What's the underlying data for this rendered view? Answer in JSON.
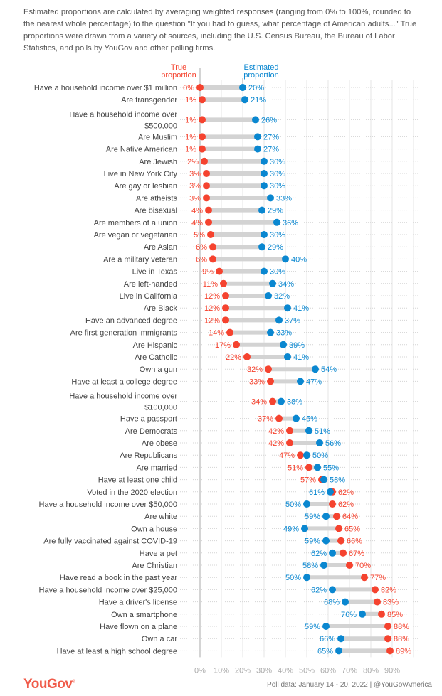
{
  "intro_text": "Estimated proportions are calculated by averaging weighted responses (ranging from 0% to 100%, rounded to the nearest whole percentage) to the question \"If you had to guess, what percentage of American adults...\" True proportions were drawn from a variety of sources, including the U.S. Census Bureau, the Bureau of Labor Statistics, and polls by YouGov and other polling firms.",
  "footer": {
    "logo": "YouGov",
    "source": "Poll data: January 14 - 20, 2022 | @YouGovAmerica"
  },
  "colors": {
    "true": "#f5432f",
    "estimated": "#0a87d0",
    "connector": "#d3d3d3"
  },
  "chart_data": {
    "type": "dumbbell",
    "title": "",
    "xlabel": "",
    "ylabel": "",
    "xlim": [
      0,
      100
    ],
    "xticks": [
      "0%",
      "10%",
      "20%",
      "30%",
      "40%",
      "50%",
      "60%",
      "70%",
      "80%",
      "90%"
    ],
    "grid": true,
    "legend": {
      "true_label_line1": "True",
      "true_label_line2": "proportion",
      "estimated_label_line1": "Estimated",
      "estimated_label_line2": "proportion",
      "placement": "top"
    },
    "series": [
      {
        "name": "True proportion",
        "key": "true"
      },
      {
        "name": "Estimated proportion",
        "key": "estimated"
      }
    ],
    "rows": [
      {
        "label": [
          "Have a household income over $1 million"
        ],
        "true": 0,
        "estimated": 20
      },
      {
        "label": [
          "Are transgender"
        ],
        "true": 1,
        "estimated": 21
      },
      {
        "label": [
          "Have a household income over",
          "$500,000"
        ],
        "true": 1,
        "estimated": 26
      },
      {
        "label": [
          "Are Muslim"
        ],
        "true": 1,
        "estimated": 27
      },
      {
        "label": [
          "Are Native American"
        ],
        "true": 1,
        "estimated": 27
      },
      {
        "label": [
          "Are Jewish"
        ],
        "true": 2,
        "estimated": 30
      },
      {
        "label": [
          "Live in New York City"
        ],
        "true": 3,
        "estimated": 30
      },
      {
        "label": [
          "Are gay or lesbian"
        ],
        "true": 3,
        "estimated": 30
      },
      {
        "label": [
          "Are atheists"
        ],
        "true": 3,
        "estimated": 33
      },
      {
        "label": [
          "Are bisexual"
        ],
        "true": 4,
        "estimated": 29
      },
      {
        "label": [
          "Are members of a union"
        ],
        "true": 4,
        "estimated": 36
      },
      {
        "label": [
          "Are vegan or vegetarian"
        ],
        "true": 5,
        "estimated": 30
      },
      {
        "label": [
          "Are Asian"
        ],
        "true": 6,
        "estimated": 29
      },
      {
        "label": [
          "Are a military veteran"
        ],
        "true": 6,
        "estimated": 40
      },
      {
        "label": [
          "Live in Texas"
        ],
        "true": 9,
        "estimated": 30
      },
      {
        "label": [
          "Are left-handed"
        ],
        "true": 11,
        "estimated": 34
      },
      {
        "label": [
          "Live in California"
        ],
        "true": 12,
        "estimated": 32
      },
      {
        "label": [
          "Are Black"
        ],
        "true": 12,
        "estimated": 41
      },
      {
        "label": [
          "Have an advanced degree"
        ],
        "true": 12,
        "estimated": 37
      },
      {
        "label": [
          "Are first-generation immigrants"
        ],
        "true": 14,
        "estimated": 33
      },
      {
        "label": [
          "Are Hispanic"
        ],
        "true": 17,
        "estimated": 39
      },
      {
        "label": [
          "Are Catholic"
        ],
        "true": 22,
        "estimated": 41
      },
      {
        "label": [
          "Own a gun"
        ],
        "true": 32,
        "estimated": 54
      },
      {
        "label": [
          "Have at least a college degree"
        ],
        "true": 33,
        "estimated": 47
      },
      {
        "label": [
          "Have a household income over",
          "$100,000"
        ],
        "true": 34,
        "estimated": 38
      },
      {
        "label": [
          "Have a passport"
        ],
        "true": 37,
        "estimated": 45
      },
      {
        "label": [
          "Are Democrats"
        ],
        "true": 42,
        "estimated": 51
      },
      {
        "label": [
          "Are obese"
        ],
        "true": 42,
        "estimated": 56
      },
      {
        "label": [
          "Are Republicans"
        ],
        "true": 47,
        "estimated": 50
      },
      {
        "label": [
          "Are married"
        ],
        "true": 51,
        "estimated": 55
      },
      {
        "label": [
          "Have at least one child"
        ],
        "true": 57,
        "estimated": 58
      },
      {
        "label": [
          "Voted in the 2020 election"
        ],
        "true": 62,
        "estimated": 61
      },
      {
        "label": [
          "Have a household income over $50,000"
        ],
        "true": 62,
        "estimated": 50
      },
      {
        "label": [
          "Are white"
        ],
        "true": 64,
        "estimated": 59
      },
      {
        "label": [
          "Own a house"
        ],
        "true": 65,
        "estimated": 49
      },
      {
        "label": [
          "Are fully vaccinated against COVID-19"
        ],
        "true": 66,
        "estimated": 59
      },
      {
        "label": [
          "Have a pet"
        ],
        "true": 67,
        "estimated": 62
      },
      {
        "label": [
          "Are Christian"
        ],
        "true": 70,
        "estimated": 58
      },
      {
        "label": [
          "Have read a book in the past year"
        ],
        "true": 77,
        "estimated": 50
      },
      {
        "label": [
          "Have a household income over $25,000"
        ],
        "true": 82,
        "estimated": 62
      },
      {
        "label": [
          "Have a driver's license"
        ],
        "true": 83,
        "estimated": 68
      },
      {
        "label": [
          "Own a smartphone"
        ],
        "true": 85,
        "estimated": 76
      },
      {
        "label": [
          "Have flown on a plane"
        ],
        "true": 88,
        "estimated": 59
      },
      {
        "label": [
          "Own a car"
        ],
        "true": 88,
        "estimated": 66
      },
      {
        "label": [
          "Have at least a high school degree"
        ],
        "true": 89,
        "estimated": 65
      }
    ]
  }
}
